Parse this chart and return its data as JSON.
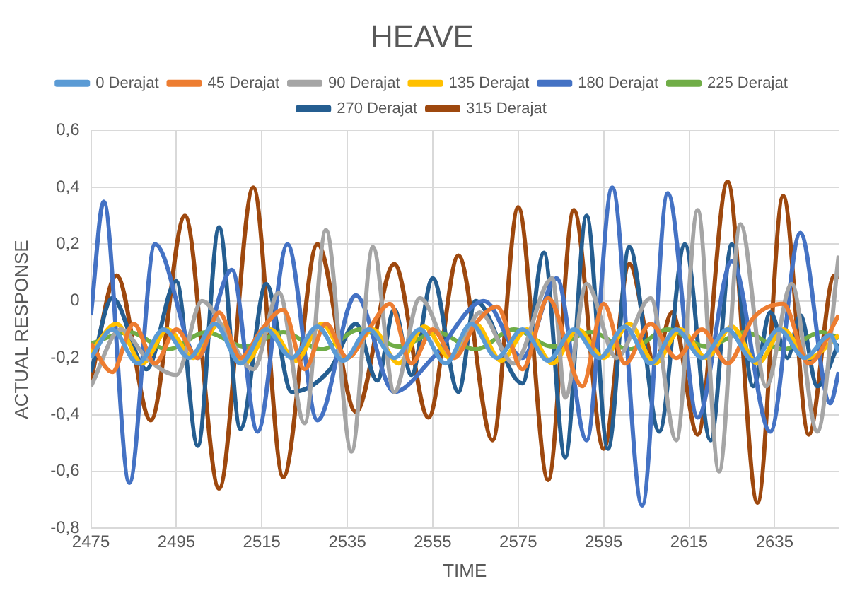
{
  "chart_data": {
    "type": "line",
    "title": "HEAVE",
    "xlabel": "TIME",
    "ylabel": "ACTUAL RESPONSE",
    "xlim": [
      2475,
      2650
    ],
    "xticks": [
      2475,
      2495,
      2515,
      2535,
      2555,
      2575,
      2595,
      2615,
      2635
    ],
    "ylim": [
      -0.8,
      0.6
    ],
    "yticks": [
      {
        "value": 0.6,
        "label": "0,6"
      },
      {
        "value": 0.4,
        "label": "0,4"
      },
      {
        "value": 0.2,
        "label": "0,2"
      },
      0,
      {
        "value": -0.2,
        "label": "-0,2"
      },
      {
        "value": -0.4,
        "label": "-0,4"
      },
      {
        "value": -0.6,
        "label": "-0,6"
      },
      {
        "value": -0.8,
        "label": "-0,8"
      }
    ],
    "grid": true,
    "legend": "top",
    "marker": "none",
    "line_style": "solid",
    "series": [
      {
        "name": "0 Derajat",
        "color": "#5b9bd5",
        "x": [
          2475,
          2480,
          2486,
          2492,
          2498,
          2504,
          2510,
          2516,
          2522,
          2528,
          2534,
          2540,
          2546,
          2552,
          2558,
          2564,
          2570,
          2576,
          2582,
          2588,
          2594,
          2600,
          2606,
          2612,
          2618,
          2624,
          2630,
          2636,
          2642,
          2648,
          2650
        ],
        "values": [
          -0.2,
          -0.1,
          -0.22,
          -0.1,
          -0.2,
          -0.08,
          -0.22,
          -0.1,
          -0.2,
          -0.09,
          -0.21,
          -0.1,
          -0.2,
          -0.1,
          -0.22,
          -0.08,
          -0.2,
          -0.1,
          -0.21,
          -0.1,
          -0.2,
          -0.09,
          -0.22,
          -0.1,
          -0.2,
          -0.1,
          -0.21,
          -0.1,
          -0.2,
          -0.12,
          -0.18
        ]
      },
      {
        "name": "45 Derajat",
        "color": "#ed7d31",
        "x": [
          2475,
          2480,
          2485,
          2490,
          2495,
          2500,
          2505,
          2510,
          2515,
          2520,
          2525,
          2530,
          2535,
          2540,
          2545,
          2550,
          2555,
          2560,
          2565,
          2570,
          2576,
          2582,
          2590,
          2595,
          2600,
          2606,
          2612,
          2618,
          2624,
          2630,
          2637,
          2643,
          2650
        ],
        "values": [
          -0.15,
          -0.25,
          -0.08,
          -0.22,
          -0.1,
          -0.2,
          -0.04,
          -0.2,
          -0.1,
          -0.03,
          -0.24,
          -0.08,
          -0.2,
          -0.1,
          -0.01,
          -0.22,
          -0.1,
          -0.2,
          -0.08,
          -0.02,
          -0.24,
          0.01,
          -0.3,
          -0.01,
          -0.22,
          -0.08,
          -0.2,
          -0.1,
          -0.22,
          -0.06,
          -0.01,
          -0.22,
          -0.05
        ]
      },
      {
        "name": "90 Derajat",
        "color": "#a5a5a5",
        "x": [
          2475,
          2482,
          2488,
          2495,
          2501,
          2507,
          2513,
          2519,
          2525,
          2530,
          2536,
          2541,
          2546,
          2552,
          2560,
          2566,
          2574,
          2583,
          2586,
          2591,
          2598,
          2606,
          2612,
          2617,
          2622,
          2627,
          2633,
          2639,
          2645,
          2650
        ],
        "values": [
          -0.3,
          -0.1,
          -0.2,
          -0.26,
          0.0,
          -0.12,
          -0.24,
          0.03,
          -0.43,
          0.25,
          -0.53,
          0.19,
          -0.32,
          0.01,
          -0.2,
          -0.04,
          -0.22,
          0.08,
          -0.34,
          0.06,
          -0.2,
          0.01,
          -0.49,
          0.32,
          -0.6,
          0.27,
          -0.3,
          0.06,
          -0.46,
          0.16
        ]
      },
      {
        "name": "135 Derajat",
        "color": "#ffc000",
        "x": [
          2475,
          2481,
          2487,
          2493,
          2499,
          2505,
          2511,
          2517,
          2523,
          2529,
          2535,
          2541,
          2547,
          2553,
          2559,
          2565,
          2571,
          2577,
          2583,
          2589,
          2595,
          2601,
          2607,
          2613,
          2619,
          2625,
          2631,
          2637,
          2643,
          2650
        ],
        "values": [
          -0.18,
          -0.08,
          -0.22,
          -0.1,
          -0.2,
          -0.08,
          -0.22,
          -0.1,
          -0.21,
          -0.08,
          -0.2,
          -0.1,
          -0.22,
          -0.09,
          -0.2,
          -0.08,
          -0.21,
          -0.1,
          -0.22,
          -0.1,
          -0.2,
          -0.08,
          -0.22,
          -0.1,
          -0.2,
          -0.09,
          -0.22,
          -0.1,
          -0.2,
          -0.12
        ]
      },
      {
        "name": "180 Derajat",
        "color": "#4472c4",
        "x": [
          2475,
          2478,
          2484,
          2490,
          2500,
          2508,
          2514,
          2521,
          2528,
          2537,
          2546,
          2555,
          2567,
          2576,
          2584,
          2591,
          2597,
          2604,
          2610,
          2617,
          2625,
          2634,
          2641,
          2648,
          2650
        ],
        "values": [
          -0.05,
          0.35,
          -0.64,
          0.2,
          -0.2,
          0.11,
          -0.46,
          0.2,
          -0.42,
          0.02,
          -0.32,
          -0.2,
          0.0,
          -0.2,
          0.08,
          -0.49,
          0.4,
          -0.72,
          0.38,
          -0.41,
          0.14,
          -0.46,
          0.24,
          -0.36,
          -0.25
        ]
      },
      {
        "name": "225 Derajat",
        "color": "#70ad47",
        "x": [
          2475,
          2484,
          2493,
          2502,
          2511,
          2520,
          2529,
          2538,
          2547,
          2556,
          2565,
          2574,
          2583,
          2592,
          2601,
          2610,
          2619,
          2628,
          2637,
          2646,
          2650
        ],
        "values": [
          -0.15,
          -0.11,
          -0.17,
          -0.11,
          -0.16,
          -0.11,
          -0.17,
          -0.1,
          -0.16,
          -0.11,
          -0.17,
          -0.1,
          -0.16,
          -0.11,
          -0.17,
          -0.1,
          -0.16,
          -0.11,
          -0.17,
          -0.11,
          -0.13
        ]
      },
      {
        "name": "270 Derajat",
        "color": "#255e91",
        "x": [
          2475,
          2480,
          2488,
          2495,
          2500,
          2505,
          2510,
          2516,
          2522,
          2531,
          2537,
          2542,
          2546,
          2550,
          2555,
          2561,
          2565,
          2576,
          2581,
          2586,
          2591,
          2596,
          2601,
          2608,
          2614,
          2620,
          2625,
          2630,
          2634,
          2638,
          2641,
          2645,
          2650
        ],
        "values": [
          -0.25,
          0.01,
          -0.24,
          0.07,
          -0.51,
          0.26,
          -0.45,
          0.06,
          -0.32,
          -0.24,
          -0.08,
          -0.28,
          -0.03,
          -0.26,
          0.08,
          -0.32,
          -0.0,
          -0.29,
          0.17,
          -0.55,
          0.3,
          -0.52,
          0.19,
          -0.46,
          0.2,
          -0.49,
          0.2,
          -0.3,
          -0.04,
          -0.2,
          -0.05,
          -0.3,
          -0.15
        ]
      },
      {
        "name": "315 Derajat",
        "color": "#9e480e",
        "x": [
          2475,
          2481,
          2489,
          2497,
          2505,
          2513,
          2520,
          2528,
          2537,
          2546,
          2554,
          2561,
          2569,
          2575,
          2582,
          2588,
          2595,
          2601,
          2607,
          2611,
          2617,
          2624,
          2631,
          2637,
          2643,
          2649,
          2650
        ],
        "values": [
          -0.28,
          0.09,
          -0.42,
          0.3,
          -0.66,
          0.4,
          -0.62,
          0.2,
          -0.39,
          0.13,
          -0.41,
          0.16,
          -0.49,
          0.33,
          -0.63,
          0.32,
          -0.52,
          0.13,
          -0.22,
          -0.04,
          -0.47,
          0.42,
          -0.71,
          0.37,
          -0.47,
          0.09,
          0.08
        ]
      }
    ]
  }
}
